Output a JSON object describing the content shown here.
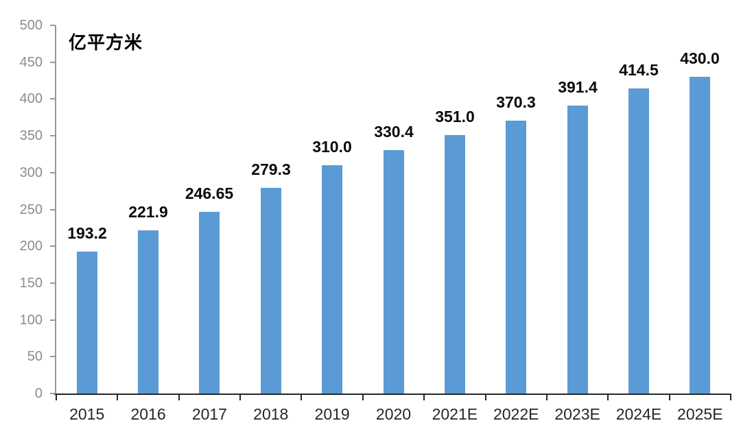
{
  "page": {
    "background": "#FFFFFF"
  },
  "chart_data": {
    "type": "bar",
    "title": "",
    "ylabel_unit": "亿平方米",
    "xlabel": "",
    "categories": [
      "2015",
      "2016",
      "2017",
      "2018",
      "2019",
      "2020",
      "2021E",
      "2022E",
      "2023E",
      "2024E",
      "2025E"
    ],
    "series": [
      {
        "name": "",
        "values": [
          193.2,
          221.9,
          246.65,
          279.3,
          310.0,
          330.4,
          351.0,
          370.3,
          391.4,
          414.5,
          430.0
        ]
      }
    ],
    "value_labels": [
      "193.2",
      "221.9",
      "246.65",
      "279.3",
      "310.0",
      "330.4",
      "351.0",
      "370.3",
      "391.4",
      "414.5",
      "430.0"
    ],
    "ylim": [
      0,
      500
    ],
    "ytick_step": 50,
    "yticks": [
      0,
      50,
      100,
      150,
      200,
      250,
      300,
      350,
      400,
      450,
      500
    ],
    "grid": false,
    "legend": "none",
    "colors": {
      "bar": "#5B9BD5",
      "value_label": "#0A0A0A",
      "x_label": "#262626",
      "y_label": "#8C8C8C",
      "x_axis": "#262626",
      "x_tick": "#262626",
      "y_axis": "#969696",
      "y_tick": "#999999"
    }
  }
}
